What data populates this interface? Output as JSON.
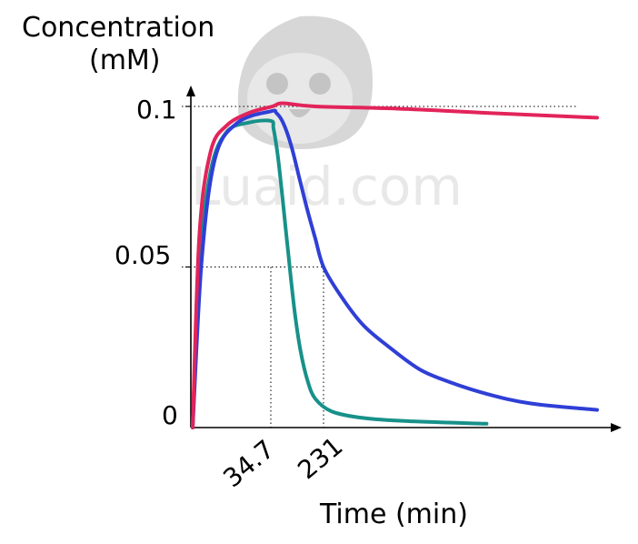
{
  "chart_data": {
    "type": "line",
    "ylabel_line1": "Concentration",
    "ylabel_line2": "(mM)",
    "xlabel": "Time (min)",
    "ylim": [
      0,
      0.1
    ],
    "yticks": [
      "0",
      "0.05",
      "0.1"
    ],
    "xtick_labels": [
      "34.7",
      "231"
    ],
    "guides": {
      "y_max": 0.1,
      "y_half": 0.05
    },
    "watermark": "Luaid.com",
    "colors": {
      "red": "#e2245a",
      "blue": "#2f3fd6",
      "teal": "#17918a"
    },
    "series": [
      {
        "color_key": "red",
        "points": [
          [
            0,
            0
          ],
          [
            3,
            0.06
          ],
          [
            8,
            0.086
          ],
          [
            15,
            0.094
          ],
          [
            25,
            0.098
          ],
          [
            40,
            0.1
          ],
          [
            80,
            0.101
          ],
          [
            200,
            0.1
          ],
          [
            400,
            0.0993
          ],
          [
            600,
            0.098
          ],
          [
            850,
            0.0965
          ]
        ]
      },
      {
        "color_key": "blue",
        "points": [
          [
            0,
            0
          ],
          [
            4,
            0.052
          ],
          [
            10,
            0.084
          ],
          [
            20,
            0.095
          ],
          [
            35,
            0.0985
          ],
          [
            55,
            0.098
          ],
          [
            80,
            0.095
          ],
          [
            110,
            0.088
          ],
          [
            140,
            0.078
          ],
          [
            170,
            0.068
          ],
          [
            200,
            0.059
          ],
          [
            231,
            0.05
          ],
          [
            270,
            0.041
          ],
          [
            320,
            0.032
          ],
          [
            380,
            0.025
          ],
          [
            450,
            0.018
          ],
          [
            520,
            0.014
          ],
          [
            600,
            0.0105
          ],
          [
            700,
            0.0075
          ],
          [
            850,
            0.0055
          ]
        ]
      },
      {
        "color_key": "teal",
        "points": [
          [
            0,
            0
          ],
          [
            3,
            0.05
          ],
          [
            8,
            0.08
          ],
          [
            15,
            0.092
          ],
          [
            25,
            0.095
          ],
          [
            35,
            0.0955
          ],
          [
            45,
            0.093
          ],
          [
            60,
            0.085
          ],
          [
            75,
            0.074
          ],
          [
            90,
            0.062
          ],
          [
            100,
            0.054
          ],
          [
            110,
            0.046
          ],
          [
            125,
            0.035
          ],
          [
            145,
            0.024
          ],
          [
            170,
            0.015
          ],
          [
            200,
            0.009
          ],
          [
            250,
            0.005
          ],
          [
            320,
            0.003
          ],
          [
            420,
            0.002
          ],
          [
            600,
            0.0012
          ]
        ]
      }
    ]
  }
}
